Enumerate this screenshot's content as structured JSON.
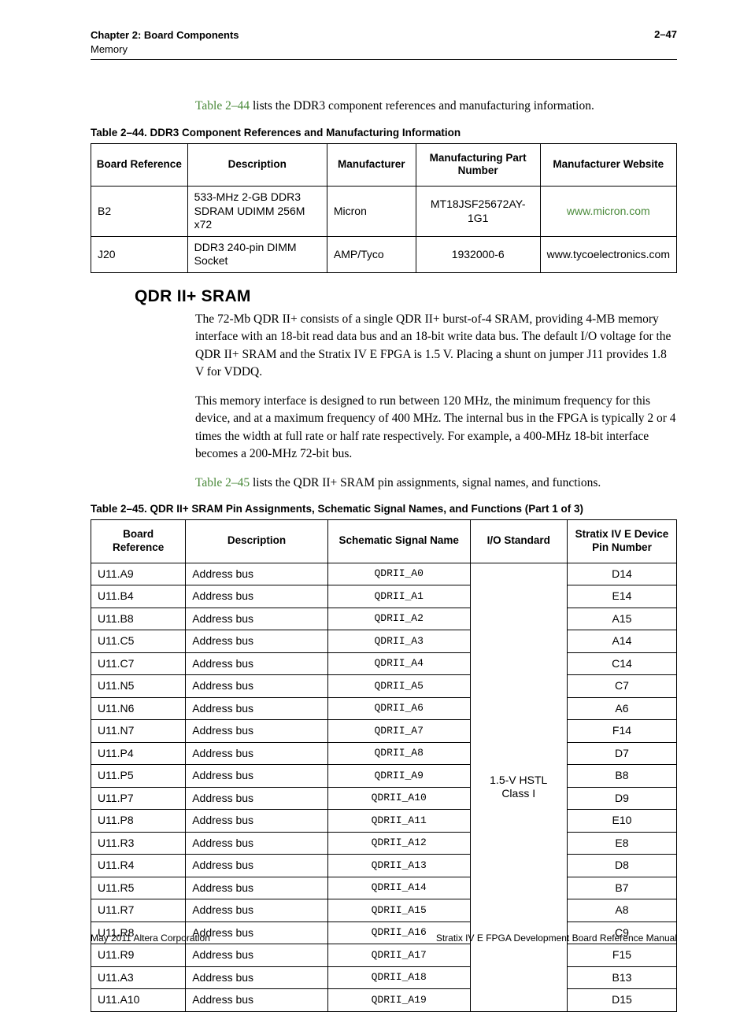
{
  "header": {
    "chapter_line": "Chapter 2: Board Components",
    "sub_line": "Memory",
    "page_number": "2–47"
  },
  "intro_sentence": {
    "link_text": "Table 2–44",
    "rest": " lists the DDR3 component references and manufacturing information."
  },
  "table44": {
    "caption": "Table 2–44.  DDR3 Component References and Manufacturing Information",
    "columns": [
      "Board Reference",
      "Description",
      "Manufacturer",
      "Manufacturing Part Number",
      "Manufacturer Website"
    ],
    "rows": [
      {
        "ref": "B2",
        "desc": "533-MHz 2-GB DDR3 SDRAM UDIMM 256M x72",
        "mfr": "Micron",
        "part": "MT18JSF25672AY-1G1",
        "site": "www.micron.com",
        "site_is_link": true
      },
      {
        "ref": "J20",
        "desc": "DDR3 240-pin DIMM Socket",
        "mfr": "AMP/Tyco",
        "part": "1932000-6",
        "site": "www.tycoelectronics.com",
        "site_is_link": false
      }
    ]
  },
  "section_heading": "QDR II+ SRAM",
  "para1": "The 72-Mb QDR II+ consists of a single QDR II+ burst-of-4 SRAM, providing 4-MB memory interface with an 18-bit read data bus and an 18-bit write data bus. The default I/O voltage for the QDR II+ SRAM and the Stratix IV E FPGA is 1.5 V. Placing a shunt on jumper J11 provides 1.8 V for VDDQ.",
  "para2": "This memory interface is designed to run between 120 MHz, the minimum frequency for this device, and at a maximum frequency of 400 MHz. The internal bus in the FPGA is typically 2 or 4 times the width at full rate or half rate respectively. For example, a 400-MHz 18-bit interface becomes a 200-MHz 72-bit bus.",
  "para3": {
    "link_text": "Table 2–45",
    "rest": " lists the QDR II+ SRAM pin assignments, signal names, and functions."
  },
  "table45": {
    "caption": "Table 2–45.  QDR II+ SRAM Pin Assignments, Schematic Signal Names, and Functions  (Part 1 of 3)",
    "columns": [
      "Board Reference",
      "Description",
      "Schematic Signal Name",
      "I/O Standard",
      "Stratix IV E Device Pin Number"
    ],
    "io_standard": "1.5-V HSTL Class I",
    "rows": [
      {
        "ref": "U11.A9",
        "desc": "Address bus",
        "sig": "QDRII_A0",
        "pin": "D14"
      },
      {
        "ref": "U11.B4",
        "desc": "Address bus",
        "sig": "QDRII_A1",
        "pin": "E14"
      },
      {
        "ref": "U11.B8",
        "desc": "Address bus",
        "sig": "QDRII_A2",
        "pin": "A15"
      },
      {
        "ref": "U11.C5",
        "desc": "Address bus",
        "sig": "QDRII_A3",
        "pin": "A14"
      },
      {
        "ref": "U11.C7",
        "desc": "Address bus",
        "sig": "QDRII_A4",
        "pin": "C14"
      },
      {
        "ref": "U11.N5",
        "desc": "Address bus",
        "sig": "QDRII_A5",
        "pin": "C7"
      },
      {
        "ref": "U11.N6",
        "desc": "Address bus",
        "sig": "QDRII_A6",
        "pin": "A6"
      },
      {
        "ref": "U11.N7",
        "desc": "Address bus",
        "sig": "QDRII_A7",
        "pin": "F14"
      },
      {
        "ref": "U11.P4",
        "desc": "Address bus",
        "sig": "QDRII_A8",
        "pin": "D7"
      },
      {
        "ref": "U11.P5",
        "desc": "Address bus",
        "sig": "QDRII_A9",
        "pin": "B8"
      },
      {
        "ref": "U11.P7",
        "desc": "Address bus",
        "sig": "QDRII_A10",
        "pin": "D9"
      },
      {
        "ref": "U11.P8",
        "desc": "Address bus",
        "sig": "QDRII_A11",
        "pin": "E10"
      },
      {
        "ref": "U11.R3",
        "desc": "Address bus",
        "sig": "QDRII_A12",
        "pin": "E8"
      },
      {
        "ref": "U11.R4",
        "desc": "Address bus",
        "sig": "QDRII_A13",
        "pin": "D8"
      },
      {
        "ref": "U11.R5",
        "desc": "Address bus",
        "sig": "QDRII_A14",
        "pin": "B7"
      },
      {
        "ref": "U11.R7",
        "desc": "Address bus",
        "sig": "QDRII_A15",
        "pin": "A8"
      },
      {
        "ref": "U11.R8",
        "desc": "Address bus",
        "sig": "QDRII_A16",
        "pin": "C9"
      },
      {
        "ref": "U11.R9",
        "desc": "Address bus",
        "sig": "QDRII_A17",
        "pin": "F15"
      },
      {
        "ref": "U11.A3",
        "desc": "Address bus",
        "sig": "QDRII_A18",
        "pin": "B13"
      },
      {
        "ref": "U11.A10",
        "desc": "Address bus",
        "sig": "QDRII_A19",
        "pin": "D15"
      }
    ]
  },
  "footer": {
    "left": "May 2011   Altera Corporation",
    "right": "Stratix IV E FPGA Development Board Reference Manual"
  },
  "colors": {
    "link": "#4a8a3a"
  }
}
